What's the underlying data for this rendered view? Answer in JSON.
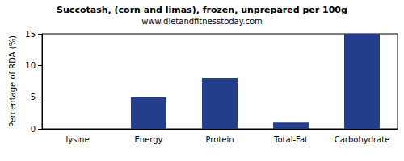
{
  "chart_data": {
    "type": "bar",
    "title": "Succotash, (corn and limas), frozen, unprepared per 100g",
    "subtitle": "www.dietandfitnesstoday.com",
    "y_label": "Percentage of RDA (%)",
    "categories": [
      "lysine",
      "Energy",
      "Protein",
      "Total-Fat",
      "Carbohydrate"
    ],
    "values": [
      0,
      5,
      8,
      1,
      15
    ],
    "color": "#233f8c",
    "ylim": [
      0,
      15
    ],
    "yticks": [
      0,
      5,
      10,
      15
    ],
    "grid": false
  }
}
